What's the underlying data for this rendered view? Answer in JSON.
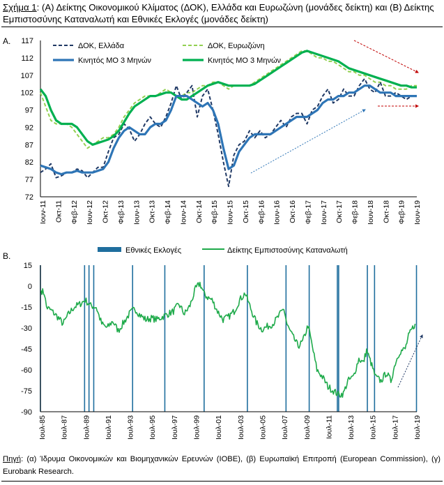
{
  "figure": {
    "label": "Σχήμα 1",
    "title_rest": ": (Α) Δείκτης Οικονομικού Κλίματος (ΔΟΚ), Ελλάδα και Ευρωζώνη (μονάδες δείκτη) και (Β) Δείκτης Εμπιστοσύνης Καταναλωτή και Εθνικές Εκλογές (μονάδες δείκτη)",
    "panel_a_tag": "A.",
    "panel_b_tag": "B.",
    "source_label": "Πηγή",
    "source_text": ": (α) Ίδρυμα Οικονομικών και Βιομηχανικών Ερευνών (ΙΟΒΕ), (β) Ευρωπαϊκή Επιτροπή (European Commission), (γ) Eurobank Research."
  },
  "colors": {
    "greece": "#1f3864",
    "greece_ma": "#2e75b6",
    "eurozone": "#92d050",
    "eurozone_ma": "#00b050",
    "consumer": "#1eaa4a",
    "elections": "#1f6e9e",
    "arrow_red": "#c00000",
    "arrow_blue": "#2e75b6",
    "arrow_dark": "#1f3864"
  },
  "chart_data": [
    {
      "type": "line",
      "ylim": [
        72,
        117
      ],
      "yticks": [
        72,
        77,
        82,
        87,
        92,
        97,
        102,
        107,
        112,
        117
      ],
      "x_tick_labels": [
        "Ιουν-11",
        "Οκτ-11",
        "Φεβ-12",
        "Ιουν-12",
        "Οκτ-12",
        "Φεβ-13",
        "Ιουν-13",
        "Οκτ-13",
        "Φεβ-14",
        "Ιουν-14",
        "Οκτ-14",
        "Φεβ-15",
        "Ιουν-15",
        "Οκτ-15",
        "Φεβ-16",
        "Ιουν-16",
        "Οκτ-16",
        "Φεβ-17",
        "Ιουν-17",
        "Οκτ-17",
        "Φεβ-18",
        "Ιουν-18",
        "Οκτ-18",
        "Φεβ-19",
        "Ιουν-19"
      ],
      "legend": [
        "ΔΟΚ, Ελλάδα",
        "ΔΟΚ, Ευρωζώνη",
        "Κινητός ΜΟ 3 Μηνών",
        "Κινητός ΜΟ 3 Μηνών"
      ],
      "series": [
        {
          "name": "ΔΟΚ, Ελλάδα",
          "style": "dashed",
          "values": [
            79,
            80,
            81.5,
            77.5,
            78,
            79,
            79,
            80,
            79.5,
            77.5,
            79,
            80.5,
            80.5,
            85,
            89,
            90,
            93,
            91.5,
            88,
            90,
            93,
            95,
            93,
            92,
            95,
            99,
            104,
            100,
            102,
            104,
            95,
            101,
            103,
            97,
            90,
            82,
            75,
            84,
            87,
            88,
            91,
            89,
            91,
            89,
            90,
            92,
            94,
            92,
            95,
            96,
            96,
            93,
            97,
            98,
            101,
            103,
            99,
            100,
            103,
            101,
            101,
            104,
            106,
            103,
            102,
            105,
            101,
            101,
            102,
            101,
            100,
            101,
            101
          ]
        },
        {
          "name": "ΔΟΚ, Ευρωζώνη",
          "style": "dashed",
          "values": [
            102,
            98,
            94,
            93,
            93,
            93,
            92,
            90,
            88,
            86,
            87,
            88,
            89,
            89,
            90,
            92,
            95,
            97,
            99,
            100,
            101,
            101,
            101,
            102,
            103,
            102,
            101,
            101,
            102,
            102,
            103,
            104,
            104,
            105,
            105,
            104,
            103,
            104,
            104,
            104,
            104,
            105,
            106,
            107,
            108,
            109,
            110,
            111,
            112,
            113,
            114,
            114,
            113,
            112,
            112,
            111,
            111,
            110,
            109,
            108,
            108,
            107,
            107,
            106,
            105,
            105,
            104,
            104,
            103,
            103,
            103,
            104,
            104
          ]
        },
        {
          "name": "Κινητός ΜΟ 3 Μηνών",
          "style": "solid-greece",
          "values": [
            81,
            80.5,
            80,
            79,
            78.5,
            79,
            79,
            79.5,
            79,
            79,
            79,
            79.5,
            80,
            82,
            86,
            89,
            91,
            92,
            91,
            90,
            90,
            92,
            93,
            93,
            94,
            97,
            101,
            101,
            101,
            100,
            99,
            98,
            99,
            97,
            93,
            86,
            80,
            81,
            85,
            87,
            89,
            90,
            90,
            90,
            90,
            91,
            92,
            93,
            94,
            95,
            95,
            95,
            96,
            97,
            99,
            100,
            100,
            101,
            101,
            102,
            102,
            103,
            104,
            104,
            103,
            102,
            102,
            102,
            101,
            101,
            101,
            101,
            101
          ]
        },
        {
          "name": "Κινητός ΜΟ 3 Μηνών",
          "style": "solid-eurozone",
          "values": [
            103,
            101,
            97,
            94,
            93,
            93,
            93,
            92,
            90,
            88,
            87,
            87.5,
            88,
            88.5,
            89.5,
            91,
            93.5,
            96,
            98,
            99,
            100,
            101,
            101,
            101.5,
            102,
            102,
            101,
            100,
            100,
            101,
            102,
            103,
            104,
            104.5,
            105,
            104.5,
            104,
            104,
            104,
            104,
            104,
            104.5,
            105.5,
            106.5,
            107.5,
            108.5,
            109.5,
            110.5,
            111.5,
            112.5,
            113.5,
            114,
            113.5,
            113,
            112.5,
            112,
            111.5,
            111,
            110,
            109,
            108.5,
            108,
            107.5,
            107,
            106.5,
            106,
            105.5,
            105,
            104.5,
            104,
            104,
            103.5,
            103.5
          ]
        }
      ]
    },
    {
      "type": "line",
      "ylim": [
        -90,
        15
      ],
      "yticks": [
        -90,
        -75,
        -60,
        -45,
        -30,
        -15,
        0,
        15
      ],
      "x_tick_labels": [
        "Ιουλ-85",
        "Ιουλ-87",
        "Ιουλ-89",
        "Ιουλ-91",
        "Ιουλ-93",
        "Ιουλ-95",
        "Ιουλ-97",
        "Ιουλ-99",
        "Ιουλ-01",
        "Ιουλ-03",
        "Ιουλ-05",
        "Ιουλ-07",
        "Ιουλ-09",
        "Ιουλ-11",
        "Ιουλ-13",
        "Ιουλ-15",
        "Ιουλ-17",
        "Ιουλ-19"
      ],
      "legend": [
        "Εθνικές Εκλογές",
        "Δείκτης Εμπιστοσύνης Καταναλωτή"
      ],
      "election_years": [
        1985.45,
        1989.45,
        1989.85,
        1990.28,
        1993.8,
        1996.72,
        2000.28,
        2004.2,
        2007.7,
        2009.8,
        2012.35,
        2012.47,
        2015.07,
        2015.72,
        2019.52
      ],
      "series": [
        {
          "name": "Δείκτης Εμπιστοσύνης Καταναλωτή",
          "points": [
            [
              1985.5,
              -3
            ],
            [
              1985.8,
              -5
            ],
            [
              1986.0,
              -15
            ],
            [
              1986.5,
              -18
            ],
            [
              1987.0,
              -22
            ],
            [
              1987.5,
              -27
            ],
            [
              1988.0,
              -20
            ],
            [
              1988.5,
              -15
            ],
            [
              1989.0,
              -13
            ],
            [
              1989.5,
              -10
            ],
            [
              1990.0,
              -14
            ],
            [
              1990.5,
              -15
            ],
            [
              1991.0,
              -27
            ],
            [
              1991.5,
              -30
            ],
            [
              1992.0,
              -25
            ],
            [
              1992.5,
              -32
            ],
            [
              1993.0,
              -26
            ],
            [
              1993.5,
              -20
            ],
            [
              1994.0,
              -16
            ],
            [
              1994.5,
              -21
            ],
            [
              1995.0,
              -24
            ],
            [
              1995.5,
              -23
            ],
            [
              1996.0,
              -24
            ],
            [
              1996.5,
              -22
            ],
            [
              1997.0,
              -20
            ],
            [
              1997.5,
              -18
            ],
            [
              1998.0,
              -13
            ],
            [
              1998.5,
              -20
            ],
            [
              1999.0,
              -14
            ],
            [
              1999.5,
              -2
            ],
            [
              1999.9,
              2
            ],
            [
              2000.3,
              -6
            ],
            [
              2000.6,
              -8
            ],
            [
              2001.0,
              -10
            ],
            [
              2001.5,
              -18
            ],
            [
              2002.0,
              -24
            ],
            [
              2002.5,
              -22
            ],
            [
              2003.0,
              -18
            ],
            [
              2003.5,
              -10
            ],
            [
              2004.0,
              -5
            ],
            [
              2004.5,
              -16
            ],
            [
              2005.0,
              -26
            ],
            [
              2005.5,
              -31
            ],
            [
              2006.0,
              -29
            ],
            [
              2006.5,
              -27
            ],
            [
              2007.0,
              -22
            ],
            [
              2007.5,
              -16
            ],
            [
              2007.8,
              -28
            ],
            [
              2008.3,
              -36
            ],
            [
              2008.8,
              -43
            ],
            [
              2009.2,
              -40
            ],
            [
              2009.7,
              -28
            ],
            [
              2010.0,
              -40
            ],
            [
              2010.5,
              -60
            ],
            [
              2011.0,
              -65
            ],
            [
              2011.5,
              -72
            ],
            [
              2012.0,
              -75
            ],
            [
              2012.5,
              -78
            ],
            [
              2012.9,
              -77
            ],
            [
              2013.3,
              -68
            ],
            [
              2013.8,
              -65
            ],
            [
              2014.3,
              -52
            ],
            [
              2014.7,
              -55
            ],
            [
              2015.0,
              -46
            ],
            [
              2015.4,
              -55
            ],
            [
              2015.8,
              -65
            ],
            [
              2016.3,
              -68
            ],
            [
              2016.8,
              -62
            ],
            [
              2017.2,
              -68
            ],
            [
              2017.6,
              -55
            ],
            [
              2018.0,
              -47
            ],
            [
              2018.5,
              -45
            ],
            [
              2018.8,
              -36
            ],
            [
              2019.1,
              -31
            ],
            [
              2019.4,
              -27
            ]
          ]
        }
      ]
    }
  ]
}
